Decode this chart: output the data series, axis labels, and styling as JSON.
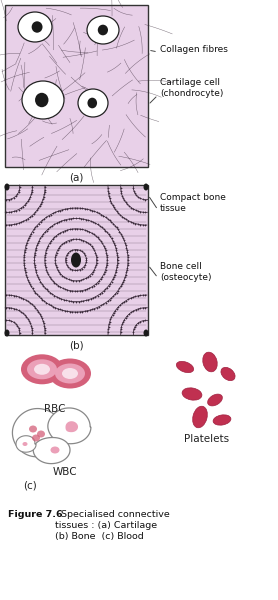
{
  "bg_color": "#ffffff",
  "panel_bg": "#e8d0e8",
  "panel_border": "#333333",
  "fig_width": 2.78,
  "fig_height": 6.0,
  "dpi": 100,
  "label_a": "(a)",
  "label_b": "(b)",
  "label_c": "(c)",
  "ann_collagen": "Collagen fibres",
  "ann_cartilage": "Cartilage cell\n(chondrocyte)",
  "ann_compact": "Compact bone\ntissue",
  "ann_bone_cell": "Bone cell\n(osteocyte)",
  "ann_rbc": "RBC",
  "ann_wbc": "WBC",
  "ann_platelets": "Platelets",
  "rbc_rim": "#d4607a",
  "rbc_mid": "#eba0b8",
  "rbc_center": "#f8e0ea",
  "platelet_color": "#c03050",
  "dark_line": "#3a2a3a",
  "caption_bold": "Figure 7.6",
  "caption_rest1": "  Specialised connective",
  "caption_rest2": "tissues : (a) Cartilage",
  "caption_rest3": "(b) Bone  (c) Blood"
}
